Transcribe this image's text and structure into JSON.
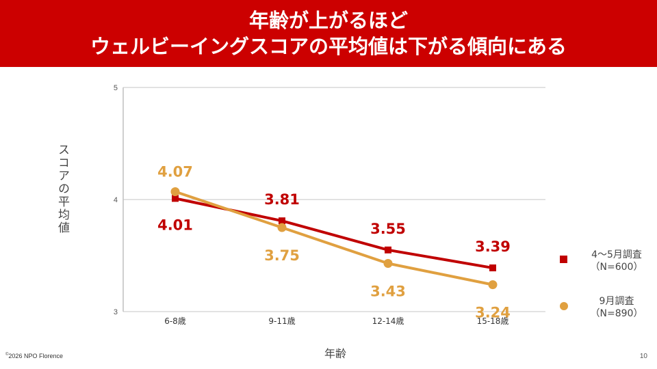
{
  "header": {
    "title_line1": "年齢が上がるほど",
    "title_line2": "ウェルビーイングスコアの平均値は下がる傾向にある"
  },
  "chart_data": {
    "type": "line",
    "categories": [
      "6-8歳",
      "9-11歳",
      "12-14歳",
      "15-18歳"
    ],
    "series": [
      {
        "name": "4～5月調査（N=600）",
        "values": [
          4.01,
          3.81,
          3.55,
          3.39
        ],
        "color": "#c00000",
        "marker": "square"
      },
      {
        "name": "9月調査（N=890）",
        "values": [
          4.07,
          3.75,
          3.43,
          3.24
        ],
        "color": "#e0a040",
        "marker": "circle"
      }
    ],
    "ylim": [
      3,
      5
    ],
    "yticks": [
      3,
      4,
      5
    ],
    "ylabel": "スコアの平均値",
    "xlabel": "年齢",
    "grid": true,
    "legend_position": "right"
  },
  "legend": {
    "series1_line1": "4～5月調査",
    "series1_line2": "（N=600）",
    "series2_line1": "9月調査",
    "series2_line2": "（N=890）"
  },
  "footer": {
    "copyright_symbol": "©",
    "copyright_text": "2026 NPO Florence",
    "page_number": "10"
  }
}
